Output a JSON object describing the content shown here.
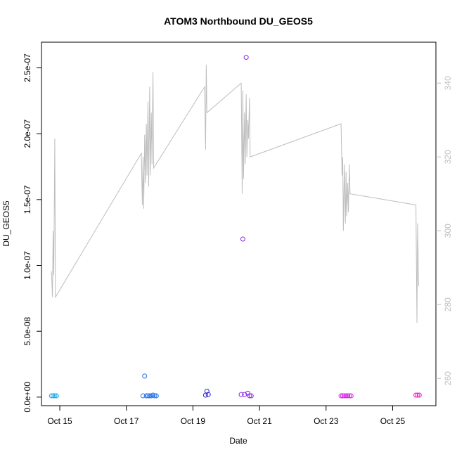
{
  "chart_data": {
    "type": "scatter",
    "title": "ATOM3 Northbound DU_GEOS5",
    "xlabel": "Date",
    "ylabel": "DU_GEOS5",
    "x_ticks": [
      {
        "label": "Oct 15",
        "value": 15
      },
      {
        "label": "Oct 17",
        "value": 17
      },
      {
        "label": "Oct 19",
        "value": 19
      },
      {
        "label": "Oct 21",
        "value": 21
      },
      {
        "label": "Oct 23",
        "value": 23
      },
      {
        "label": "Oct 25",
        "value": 25
      }
    ],
    "xlim": [
      14.45,
      26.3
    ],
    "ylim": [
      -6.5e-09,
      2.695e-07
    ],
    "y_ticks": [
      {
        "label": "0.0e+00",
        "value": 0
      },
      {
        "label": "5.0e-08",
        "value": 5e-08
      },
      {
        "label": "1.0e-07",
        "value": 1e-07
      },
      {
        "label": "1.5e-07",
        "value": 1.5e-07
      },
      {
        "label": "2.0e-07",
        "value": 2e-07
      },
      {
        "label": "2.5e-07",
        "value": 2.5e-07
      }
    ],
    "y2lim": [
      252.6,
      351.1
    ],
    "y2_ticks": [
      {
        "label": "260",
        "value": 260
      },
      {
        "label": "280",
        "value": 280
      },
      {
        "label": "300",
        "value": 300
      },
      {
        "label": "320",
        "value": 320
      },
      {
        "label": "340",
        "value": 340
      }
    ],
    "colors": {
      "line": "#bebebe",
      "axis": "#000000",
      "y2_axis": "#bebebe"
    },
    "points": [
      {
        "x": 14.75,
        "y": 1e-09,
        "color": "#1aa6e6"
      },
      {
        "x": 14.8,
        "y": 1e-09,
        "color": "#1aa6e6"
      },
      {
        "x": 14.85,
        "y": 1e-09,
        "color": "#1aa6e6"
      },
      {
        "x": 14.9,
        "y": 1e-09,
        "color": "#1aa6e6"
      },
      {
        "x": 17.5,
        "y": 1e-09,
        "color": "#1f6ee6"
      },
      {
        "x": 17.55,
        "y": 1.6e-08,
        "color": "#1f6ee6"
      },
      {
        "x": 17.6,
        "y": 1e-09,
        "color": "#1f6ee6"
      },
      {
        "x": 17.65,
        "y": 1e-09,
        "color": "#1f6ee6"
      },
      {
        "x": 17.7,
        "y": 1e-09,
        "color": "#1f6ee6"
      },
      {
        "x": 17.75,
        "y": 1e-09,
        "color": "#1f6ee6"
      },
      {
        "x": 17.8,
        "y": 1.5e-09,
        "color": "#1f6ee6"
      },
      {
        "x": 17.85,
        "y": 1e-09,
        "color": "#1f6ee6"
      },
      {
        "x": 17.9,
        "y": 1e-09,
        "color": "#1f6ee6"
      },
      {
        "x": 19.38,
        "y": 1.5e-09,
        "color": "#2b22d6"
      },
      {
        "x": 19.42,
        "y": 4.5e-09,
        "color": "#2b22d6"
      },
      {
        "x": 19.46,
        "y": 2e-09,
        "color": "#2b22d6"
      },
      {
        "x": 20.45,
        "y": 2e-09,
        "color": "#8a22e6"
      },
      {
        "x": 20.5,
        "y": 1.2e-07,
        "color": "#8a22e6"
      },
      {
        "x": 20.55,
        "y": 2e-09,
        "color": "#8a22e6"
      },
      {
        "x": 20.6,
        "y": 2.58e-07,
        "color": "#8a22e6"
      },
      {
        "x": 20.65,
        "y": 3e-09,
        "color": "#8a22e6"
      },
      {
        "x": 20.7,
        "y": 1e-09,
        "color": "#8a22e6"
      },
      {
        "x": 20.75,
        "y": 1e-09,
        "color": "#8a22e6"
      },
      {
        "x": 23.45,
        "y": 1e-09,
        "color": "#d61ee6"
      },
      {
        "x": 23.5,
        "y": 1e-09,
        "color": "#d61ee6"
      },
      {
        "x": 23.55,
        "y": 1e-09,
        "color": "#d61ee6"
      },
      {
        "x": 23.6,
        "y": 1e-09,
        "color": "#d61ee6"
      },
      {
        "x": 23.65,
        "y": 1e-09,
        "color": "#d61ee6"
      },
      {
        "x": 23.7,
        "y": 1e-09,
        "color": "#d61ee6"
      },
      {
        "x": 23.75,
        "y": 1e-09,
        "color": "#d61ee6"
      },
      {
        "x": 25.7,
        "y": 1.5e-09,
        "color": "#f01ecf"
      },
      {
        "x": 25.75,
        "y": 1.5e-09,
        "color": "#f01ecf"
      },
      {
        "x": 25.8,
        "y": 1.5e-09,
        "color": "#f01ecf"
      }
    ],
    "line_series": [
      [
        14.75,
        289
      ],
      [
        14.78,
        282
      ],
      [
        14.8,
        300
      ],
      [
        14.82,
        288
      ],
      [
        14.85,
        325
      ],
      [
        14.87,
        282
      ],
      [
        17.45,
        321
      ],
      [
        17.48,
        307
      ],
      [
        17.5,
        320
      ],
      [
        17.52,
        306
      ],
      [
        17.55,
        326
      ],
      [
        17.57,
        313
      ],
      [
        17.6,
        329
      ],
      [
        17.62,
        315
      ],
      [
        17.65,
        335
      ],
      [
        17.67,
        312
      ],
      [
        17.7,
        339
      ],
      [
        17.72,
        315
      ],
      [
        17.75,
        332
      ],
      [
        17.77,
        318
      ],
      [
        17.8,
        343
      ],
      [
        17.82,
        317
      ],
      [
        19.35,
        339
      ],
      [
        19.38,
        322
      ],
      [
        19.4,
        345
      ],
      [
        19.42,
        332
      ],
      [
        20.45,
        340
      ],
      [
        20.48,
        310
      ],
      [
        20.5,
        338
      ],
      [
        20.52,
        314
      ],
      [
        20.55,
        332
      ],
      [
        20.57,
        318
      ],
      [
        20.6,
        337
      ],
      [
        20.62,
        320
      ],
      [
        20.65,
        330
      ],
      [
        20.67,
        325
      ],
      [
        20.7,
        336
      ],
      [
        20.72,
        320
      ],
      [
        23.45,
        329
      ],
      [
        23.48,
        315
      ],
      [
        23.5,
        320
      ],
      [
        23.52,
        300
      ],
      [
        23.55,
        318
      ],
      [
        23.58,
        302
      ],
      [
        23.6,
        316
      ],
      [
        23.62,
        304
      ],
      [
        23.65,
        313
      ],
      [
        23.67,
        305
      ],
      [
        23.7,
        318
      ],
      [
        23.72,
        310
      ],
      [
        25.7,
        307
      ],
      [
        25.73,
        275
      ],
      [
        25.75,
        302
      ],
      [
        25.78,
        285
      ]
    ]
  }
}
